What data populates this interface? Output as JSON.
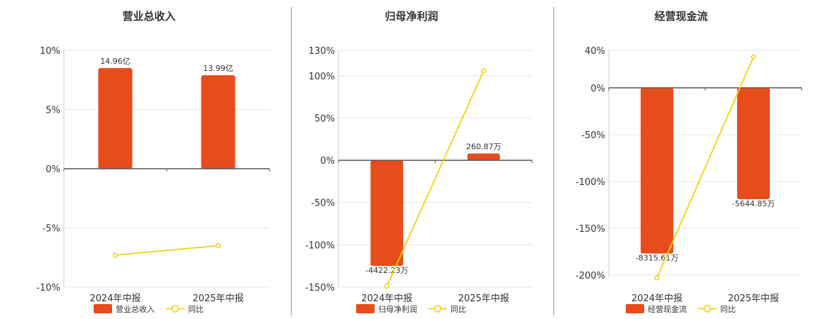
{
  "colors": {
    "bar": "#e84c1b",
    "line": "#f1d20f",
    "grid": "#e6e6e6",
    "zero": "#555555",
    "text": "#333333"
  },
  "chart_data": [
    {
      "type": "bar",
      "title": "营业总收入",
      "categories": [
        "2024年中报",
        "2025年中报"
      ],
      "series": [
        {
          "name": "营业总收入",
          "type": "bar",
          "values": [
            8.5,
            7.9
          ],
          "labels": [
            "14.96亿",
            "13.99亿"
          ]
        },
        {
          "name": "同比",
          "type": "line",
          "values": [
            -7.3,
            -6.5
          ]
        }
      ],
      "yticks": [
        10,
        5,
        0,
        -5,
        -10
      ],
      "ytick_labels": [
        "10%",
        "5%",
        "0%",
        "-5%",
        "-10%"
      ],
      "ylim": [
        -10,
        10
      ],
      "legend": "bottom"
    },
    {
      "type": "bar",
      "title": "归母净利润",
      "categories": [
        "2024年中报",
        "2025年中报"
      ],
      "series": [
        {
          "name": "归母净利润",
          "type": "bar",
          "values": [
            -125,
            8
          ],
          "labels": [
            "-4422.23万",
            "260.87万"
          ]
        },
        {
          "name": "同比",
          "type": "line",
          "values": [
            -149,
            106
          ]
        }
      ],
      "yticks": [
        130,
        100,
        50,
        0,
        -50,
        -100,
        -150
      ],
      "ytick_labels": [
        "130%",
        "100%",
        "50%",
        "0%",
        "-50%",
        "-100%",
        "-150%"
      ],
      "ylim": [
        -150,
        130
      ],
      "legend": "bottom"
    },
    {
      "type": "bar",
      "title": "经营现金流",
      "categories": [
        "2024年中报",
        "2025年中报"
      ],
      "series": [
        {
          "name": "经营现金流",
          "type": "bar",
          "values": [
            -177,
            -119
          ],
          "labels": [
            "-8315.61万",
            "-5644.85万"
          ]
        },
        {
          "name": "同比",
          "type": "line",
          "values": [
            -203,
            33
          ]
        }
      ],
      "yticks": [
        40,
        0,
        -50,
        -100,
        -150,
        -200
      ],
      "ytick_labels": [
        "40%",
        "0%",
        "-50%",
        "-100%",
        "-150%",
        "-200%"
      ],
      "ylim": [
        -203,
        40
      ],
      "legend": "bottom"
    }
  ]
}
